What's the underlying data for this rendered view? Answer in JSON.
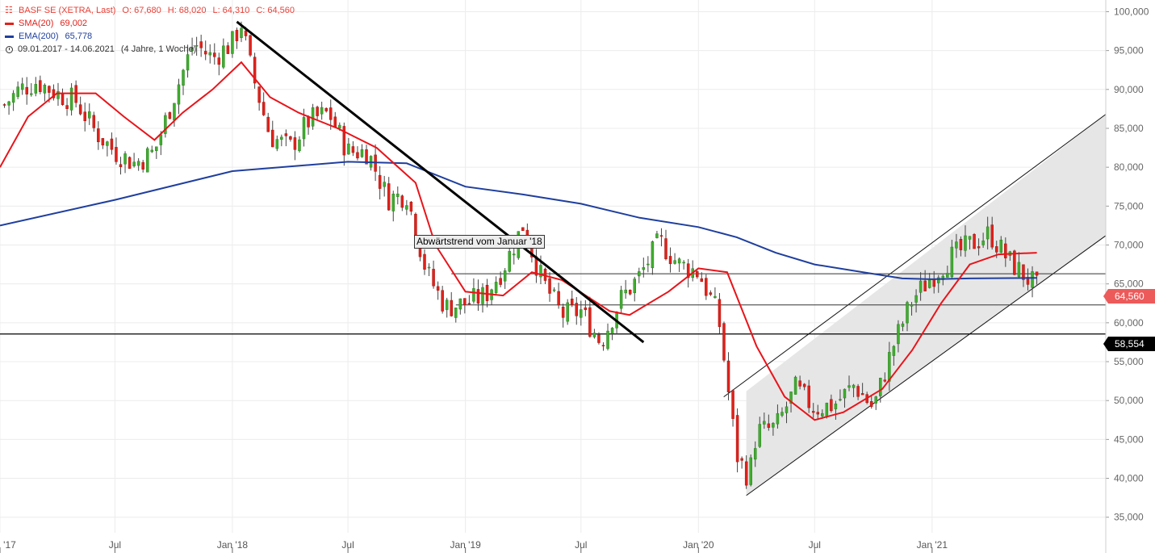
{
  "legend": {
    "title": "BASF SE (XETRA, Last)",
    "open": "O: 67,680",
    "high": "H: 68,020",
    "low": "L: 64,310",
    "close": "C: 64,560",
    "sma_label": "SMA(20)",
    "sma_value": "69,002",
    "ema_label": "EMA(200)",
    "ema_value": "65,778",
    "date_range": "09.01.2017 - 14.06.2021",
    "period": "(4 Jahre, 1 Woche)"
  },
  "tags": {
    "last_price": "64,560",
    "support": "58,554"
  },
  "annotation": "Abwärtstrend vom Januar '18",
  "colors": {
    "up": "#3fae2e",
    "down": "#e0221b",
    "sma": "#e8141a",
    "ema": "#1f3f9e",
    "channel_fill": "#e6e6e6",
    "grid": "#ececec"
  },
  "chart_data": {
    "type": "candlestick",
    "instrument": "BASF SE (XETRA, Last)",
    "interval": "weekly",
    "ylim": [
      33000,
      101500
    ],
    "y_ticks": [
      "100,000",
      "95,000",
      "90,000",
      "85,000",
      "80,000",
      "75,000",
      "70,000",
      "65,000",
      "60,000",
      "55,000",
      "50,000",
      "45,000",
      "40,000",
      "35,000"
    ],
    "y_tick_values": [
      100000,
      95000,
      90000,
      85000,
      80000,
      75000,
      70000,
      65000,
      60000,
      55000,
      50000,
      45000,
      40000,
      35000
    ],
    "x_ticks": [
      {
        "label": "'17",
        "date": "2017-01-02"
      },
      {
        "label": "Jul",
        "date": "2017-07-01"
      },
      {
        "label": "Jan '18",
        "date": "2018-01-01"
      },
      {
        "label": "Jul",
        "date": "2018-07-01"
      },
      {
        "label": "Jan '19",
        "date": "2019-01-01"
      },
      {
        "label": "Jul",
        "date": "2019-07-01"
      },
      {
        "label": "Jan '20",
        "date": "2020-01-01"
      },
      {
        "label": "Jul",
        "date": "2020-07-01"
      },
      {
        "label": "Jan '21",
        "date": "2021-01-01"
      }
    ],
    "x_range": [
      "2017-01-02",
      "2021-09-30"
    ],
    "candles_close_path": [
      [
        "2017-01-09",
        88
      ],
      [
        "2017-02-01",
        90
      ],
      [
        "2017-03-01",
        91
      ],
      [
        "2017-04-01",
        89.5
      ],
      [
        "2017-05-01",
        88.5
      ],
      [
        "2017-06-01",
        84.5
      ],
      [
        "2017-07-01",
        82
      ],
      [
        "2017-08-01",
        80.5
      ],
      [
        "2017-09-01",
        82
      ],
      [
        "2017-10-01",
        89
      ],
      [
        "2017-11-01",
        96
      ],
      [
        "2017-12-01",
        94
      ],
      [
        "2018-01-01",
        96
      ],
      [
        "2018-01-15",
        98.5
      ],
      [
        "2018-02-01",
        92
      ],
      [
        "2018-03-01",
        84
      ],
      [
        "2018-04-01",
        82.5
      ],
      [
        "2018-05-01",
        86
      ],
      [
        "2018-06-01",
        87
      ],
      [
        "2018-07-01",
        82
      ],
      [
        "2018-08-01",
        82
      ],
      [
        "2018-09-01",
        76
      ],
      [
        "2018-10-01",
        76.5
      ],
      [
        "2018-11-01",
        66.5
      ],
      [
        "2018-12-01",
        62
      ],
      [
        "2019-01-01",
        62.5
      ],
      [
        "2019-02-01",
        63.5
      ],
      [
        "2019-03-01",
        67
      ],
      [
        "2019-04-01",
        72.5
      ],
      [
        "2019-05-01",
        65.5
      ],
      [
        "2019-06-01",
        61
      ],
      [
        "2019-07-01",
        61.5
      ],
      [
        "2019-08-01",
        57.5
      ],
      [
        "2019-09-01",
        63
      ],
      [
        "2019-10-01",
        66
      ],
      [
        "2019-11-01",
        70.5
      ],
      [
        "2019-12-01",
        67.5
      ],
      [
        "2020-01-01",
        66.5
      ],
      [
        "2020-02-01",
        61
      ],
      [
        "2020-03-01",
        43
      ],
      [
        "2020-03-20",
        40
      ],
      [
        "2020-04-01",
        46
      ],
      [
        "2020-05-01",
        46.5
      ],
      [
        "2020-06-01",
        51.5
      ],
      [
        "2020-07-01",
        49
      ],
      [
        "2020-08-01",
        49.5
      ],
      [
        "2020-09-01",
        52
      ],
      [
        "2020-10-01",
        49
      ],
      [
        "2020-11-01",
        57
      ],
      [
        "2020-12-01",
        63
      ],
      [
        "2021-01-01",
        66
      ],
      [
        "2021-02-01",
        68.5
      ],
      [
        "2021-03-01",
        70
      ],
      [
        "2021-04-01",
        71.5
      ],
      [
        "2021-05-01",
        68
      ],
      [
        "2021-06-14",
        64.56
      ]
    ],
    "sma20_path": [
      [
        "2017-01-02",
        80
      ],
      [
        "2017-02-15",
        86.5
      ],
      [
        "2017-04-01",
        89.5
      ],
      [
        "2017-06-01",
        89.5
      ],
      [
        "2017-07-15",
        86.5
      ],
      [
        "2017-09-01",
        83.5
      ],
      [
        "2017-10-15",
        87
      ],
      [
        "2017-12-01",
        90
      ],
      [
        "2018-01-15",
        93.5
      ],
      [
        "2018-03-01",
        89
      ],
      [
        "2018-04-15",
        87
      ],
      [
        "2018-06-15",
        85
      ],
      [
        "2018-08-15",
        82.5
      ],
      [
        "2018-10-15",
        78
      ],
      [
        "2018-11-15",
        70
      ],
      [
        "2019-01-01",
        64
      ],
      [
        "2019-03-01",
        63.5
      ],
      [
        "2019-04-15",
        66.5
      ],
      [
        "2019-06-01",
        65.5
      ],
      [
        "2019-08-15",
        61.5
      ],
      [
        "2019-09-15",
        61
      ],
      [
        "2019-11-15",
        64
      ],
      [
        "2020-01-01",
        67
      ],
      [
        "2020-02-15",
        66.5
      ],
      [
        "2020-04-01",
        57
      ],
      [
        "2020-05-15",
        50.5
      ],
      [
        "2020-07-01",
        47.5
      ],
      [
        "2020-08-15",
        48.5
      ],
      [
        "2020-10-15",
        51.5
      ],
      [
        "2020-12-01",
        56.5
      ],
      [
        "2021-01-15",
        62.5
      ],
      [
        "2021-03-01",
        67.5
      ],
      [
        "2021-04-15",
        68.8
      ],
      [
        "2021-06-14",
        69
      ]
    ],
    "ema200_path": [
      [
        "2017-01-02",
        72.5
      ],
      [
        "2017-07-01",
        75.8
      ],
      [
        "2018-01-01",
        79.5
      ],
      [
        "2018-07-01",
        80.7
      ],
      [
        "2018-10-01",
        80.5
      ],
      [
        "2019-01-01",
        77.5
      ],
      [
        "2019-04-01",
        76.5
      ],
      [
        "2019-07-01",
        75.3
      ],
      [
        "2019-10-01",
        73.5
      ],
      [
        "2020-01-01",
        72.3
      ],
      [
        "2020-03-01",
        71
      ],
      [
        "2020-05-01",
        69
      ],
      [
        "2020-07-01",
        67.5
      ],
      [
        "2020-09-15",
        66.5
      ],
      [
        "2020-11-15",
        65.7
      ],
      [
        "2021-01-01",
        65.6
      ],
      [
        "2021-03-01",
        65.7
      ],
      [
        "2021-06-14",
        65.78
      ]
    ],
    "trendline_down": [
      [
        "2018-01-08",
        98.7
      ],
      [
        "2019-10-07",
        57.5
      ]
    ],
    "horizontal_lines": [
      {
        "value": 58.554,
        "from": "2017-01-02",
        "to": "2021-09-30"
      },
      {
        "value": 66.3,
        "from": "2018-12-10",
        "to": "2021-09-30"
      },
      {
        "value": 62.3,
        "from": "2018-12-17",
        "to": "2021-09-30"
      }
    ],
    "channel": {
      "lower": [
        [
          "2020-03-16",
          37.8
        ],
        [
          "2021-09-30",
          71.2
        ]
      ],
      "upper": [
        [
          "2020-03-16",
          51.2
        ],
        [
          "2021-09-30",
          86.8
        ]
      ]
    },
    "last_price": 64.56,
    "support_price": 58.554
  }
}
